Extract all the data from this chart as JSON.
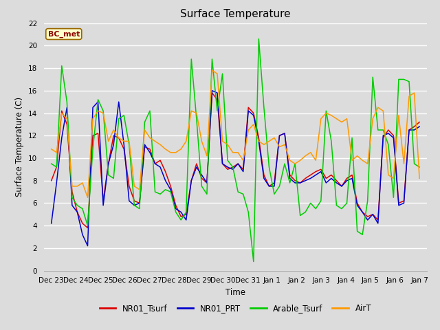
{
  "title": "Surface Temperature",
  "xlabel": "Time",
  "ylabel": "Surface Temperature (C)",
  "ylim": [
    0,
    22
  ],
  "yticks": [
    0,
    2,
    4,
    6,
    8,
    10,
    12,
    14,
    16,
    18,
    20,
    22
  ],
  "bg_color": "#dcdcdc",
  "annotation_text": "BC_met",
  "annotation_bg": "#ffffcc",
  "annotation_border": "#996600",
  "annotation_text_color": "#8B0000",
  "series_colors": {
    "NR01_Tsurf": "#dd0000",
    "NR01_PRT": "#0000cc",
    "Arable_Tsurf": "#00cc00",
    "AirT": "#ff9900"
  },
  "x_tick_labels": [
    "Dec 23",
    "Dec 24",
    "Dec 25",
    "Dec 26",
    "Dec 27",
    "Dec 28",
    "Dec 29",
    "Dec 30",
    "Dec 31",
    "Jan 1",
    "Jan 2",
    "Jan 3",
    "Jan 4",
    "Jan 5",
    "Jan 6",
    "Jan 7"
  ],
  "NR01_Tsurf": [
    8.0,
    9.2,
    14.2,
    13.0,
    7.0,
    5.2,
    4.2,
    3.8,
    12.0,
    12.2,
    6.2,
    9.5,
    12.0,
    11.8,
    10.8,
    7.5,
    6.2,
    6.0,
    11.0,
    10.8,
    9.5,
    9.8,
    8.8,
    7.5,
    5.8,
    4.8,
    5.0,
    8.0,
    9.5,
    8.2,
    7.8,
    15.8,
    15.2,
    9.5,
    9.0,
    9.2,
    9.5,
    9.0,
    14.5,
    14.0,
    11.8,
    8.5,
    7.5,
    7.8,
    12.0,
    12.2,
    8.5,
    8.0,
    7.8,
    8.2,
    8.5,
    8.8,
    9.0,
    8.2,
    8.5,
    8.0,
    7.5,
    8.2,
    8.5,
    6.0,
    5.2,
    4.8,
    5.0,
    4.5,
    11.8,
    12.5,
    12.0,
    6.0,
    6.2,
    12.5,
    12.8,
    13.2
  ],
  "NR01_PRT": [
    4.2,
    7.8,
    11.8,
    14.5,
    5.8,
    5.2,
    3.2,
    2.2,
    14.5,
    15.0,
    5.8,
    9.5,
    11.2,
    15.0,
    11.2,
    6.2,
    5.8,
    6.0,
    11.2,
    10.5,
    9.5,
    9.2,
    8.0,
    7.2,
    5.5,
    5.2,
    4.5,
    8.0,
    9.2,
    8.5,
    7.8,
    16.0,
    15.8,
    9.5,
    9.2,
    9.0,
    9.5,
    8.8,
    14.2,
    13.8,
    11.5,
    8.2,
    7.5,
    7.5,
    12.0,
    12.2,
    8.2,
    7.8,
    7.8,
    8.0,
    8.2,
    8.5,
    8.8,
    7.8,
    8.2,
    7.8,
    7.5,
    8.0,
    8.2,
    5.8,
    5.2,
    4.5,
    5.0,
    4.2,
    12.0,
    12.2,
    11.8,
    5.8,
    6.0,
    12.5,
    12.5,
    12.8
  ],
  "Arable_Tsurf": [
    9.5,
    9.2,
    18.2,
    15.0,
    6.5,
    5.8,
    5.5,
    4.0,
    10.8,
    15.2,
    14.2,
    8.5,
    8.2,
    13.5,
    13.8,
    11.2,
    5.8,
    5.5,
    13.2,
    14.2,
    7.0,
    6.8,
    7.2,
    7.0,
    5.2,
    4.5,
    5.2,
    18.8,
    13.5,
    7.5,
    6.8,
    18.8,
    14.2,
    17.5,
    9.8,
    9.2,
    7.0,
    6.8,
    5.2,
    0.8,
    20.6,
    14.5,
    9.2,
    6.8,
    7.5,
    9.5,
    7.8,
    9.5,
    4.9,
    5.2,
    6.0,
    5.5,
    6.2,
    14.2,
    11.5,
    5.8,
    5.5,
    6.0,
    11.8,
    3.5,
    3.2,
    6.2,
    17.2,
    12.5,
    12.5,
    11.2,
    6.5,
    17.0,
    17.0,
    16.8,
    9.5,
    9.2
  ],
  "AirT": [
    10.8,
    10.5,
    14.0,
    13.5,
    7.5,
    7.5,
    7.8,
    6.5,
    13.5,
    14.2,
    14.0,
    11.5,
    12.5,
    11.8,
    11.5,
    11.5,
    7.5,
    7.2,
    12.5,
    11.8,
    11.5,
    11.2,
    10.8,
    10.5,
    10.5,
    10.8,
    11.5,
    14.2,
    14.0,
    11.5,
    10.2,
    17.8,
    17.5,
    11.5,
    11.2,
    10.5,
    10.5,
    9.8,
    12.5,
    13.0,
    11.5,
    11.2,
    11.5,
    11.8,
    11.0,
    11.2,
    9.8,
    9.5,
    9.8,
    10.2,
    10.5,
    9.8,
    13.5,
    14.0,
    13.8,
    13.5,
    13.2,
    13.5,
    9.8,
    10.2,
    9.8,
    9.5,
    13.5,
    14.5,
    14.2,
    8.5,
    8.2,
    13.8,
    9.5,
    15.5,
    15.8,
    8.2
  ]
}
